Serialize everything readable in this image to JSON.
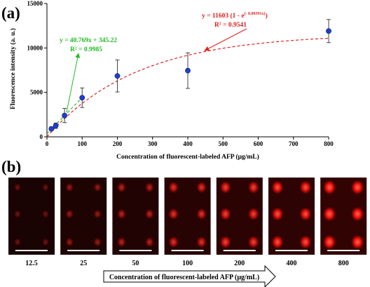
{
  "panel_a": {
    "label": "(a)",
    "equation_exp": {
      "main": "y = 11603 (1 - e",
      "exponent": "(- 0.00391x)",
      "close": ")",
      "r2": "R² = 0.9541",
      "color": "#e02020"
    },
    "equation_lin": {
      "main": "y = 40.769x + 345.22",
      "r2": "R² = 0.9985",
      "color": "#22bb22"
    }
  },
  "chart_data": {
    "type": "scatter",
    "xlabel": "Concentration of fluorescent-labeled AFP (μg/mL)",
    "ylabel": "Fluorescence intensity (a. u.)",
    "xlim": [
      0,
      800
    ],
    "ylim": [
      0,
      15000
    ],
    "xticks": [
      0,
      100,
      200,
      300,
      400,
      500,
      600,
      700,
      800
    ],
    "yticks": [
      0,
      5000,
      10000,
      15000
    ],
    "grid": false,
    "series": [
      {
        "x": [
          12.5,
          25,
          50,
          100,
          200,
          400,
          800
        ],
        "y": [
          900,
          1250,
          2400,
          4400,
          6850,
          7450,
          11900
        ],
        "err": [
          200,
          300,
          800,
          1100,
          1800,
          2000,
          1300
        ],
        "marker_color": "#1f3fd0"
      }
    ],
    "fits": [
      {
        "kind": "exponential",
        "a": 11603,
        "b": 0.00391,
        "x_range": [
          0,
          800
        ],
        "color": "#e02020",
        "style": "dashed"
      },
      {
        "kind": "linear",
        "slope": 40.769,
        "intercept": 345.22,
        "x_range": [
          0,
          100
        ],
        "color": "#22bb22",
        "style": "dashed"
      }
    ]
  },
  "panel_b": {
    "label": "(b)",
    "images": [
      {
        "label": "12.5",
        "intensity": 0.18
      },
      {
        "label": "25",
        "intensity": 0.32
      },
      {
        "label": "50",
        "intensity": 0.45
      },
      {
        "label": "100",
        "intensity": 0.62
      },
      {
        "label": "200",
        "intensity": 0.76
      },
      {
        "label": "400",
        "intensity": 0.88
      },
      {
        "label": "800",
        "intensity": 1.0
      }
    ],
    "arrow_caption": "Concentration of fluorescent-labeled AFP (μg/mL)"
  }
}
